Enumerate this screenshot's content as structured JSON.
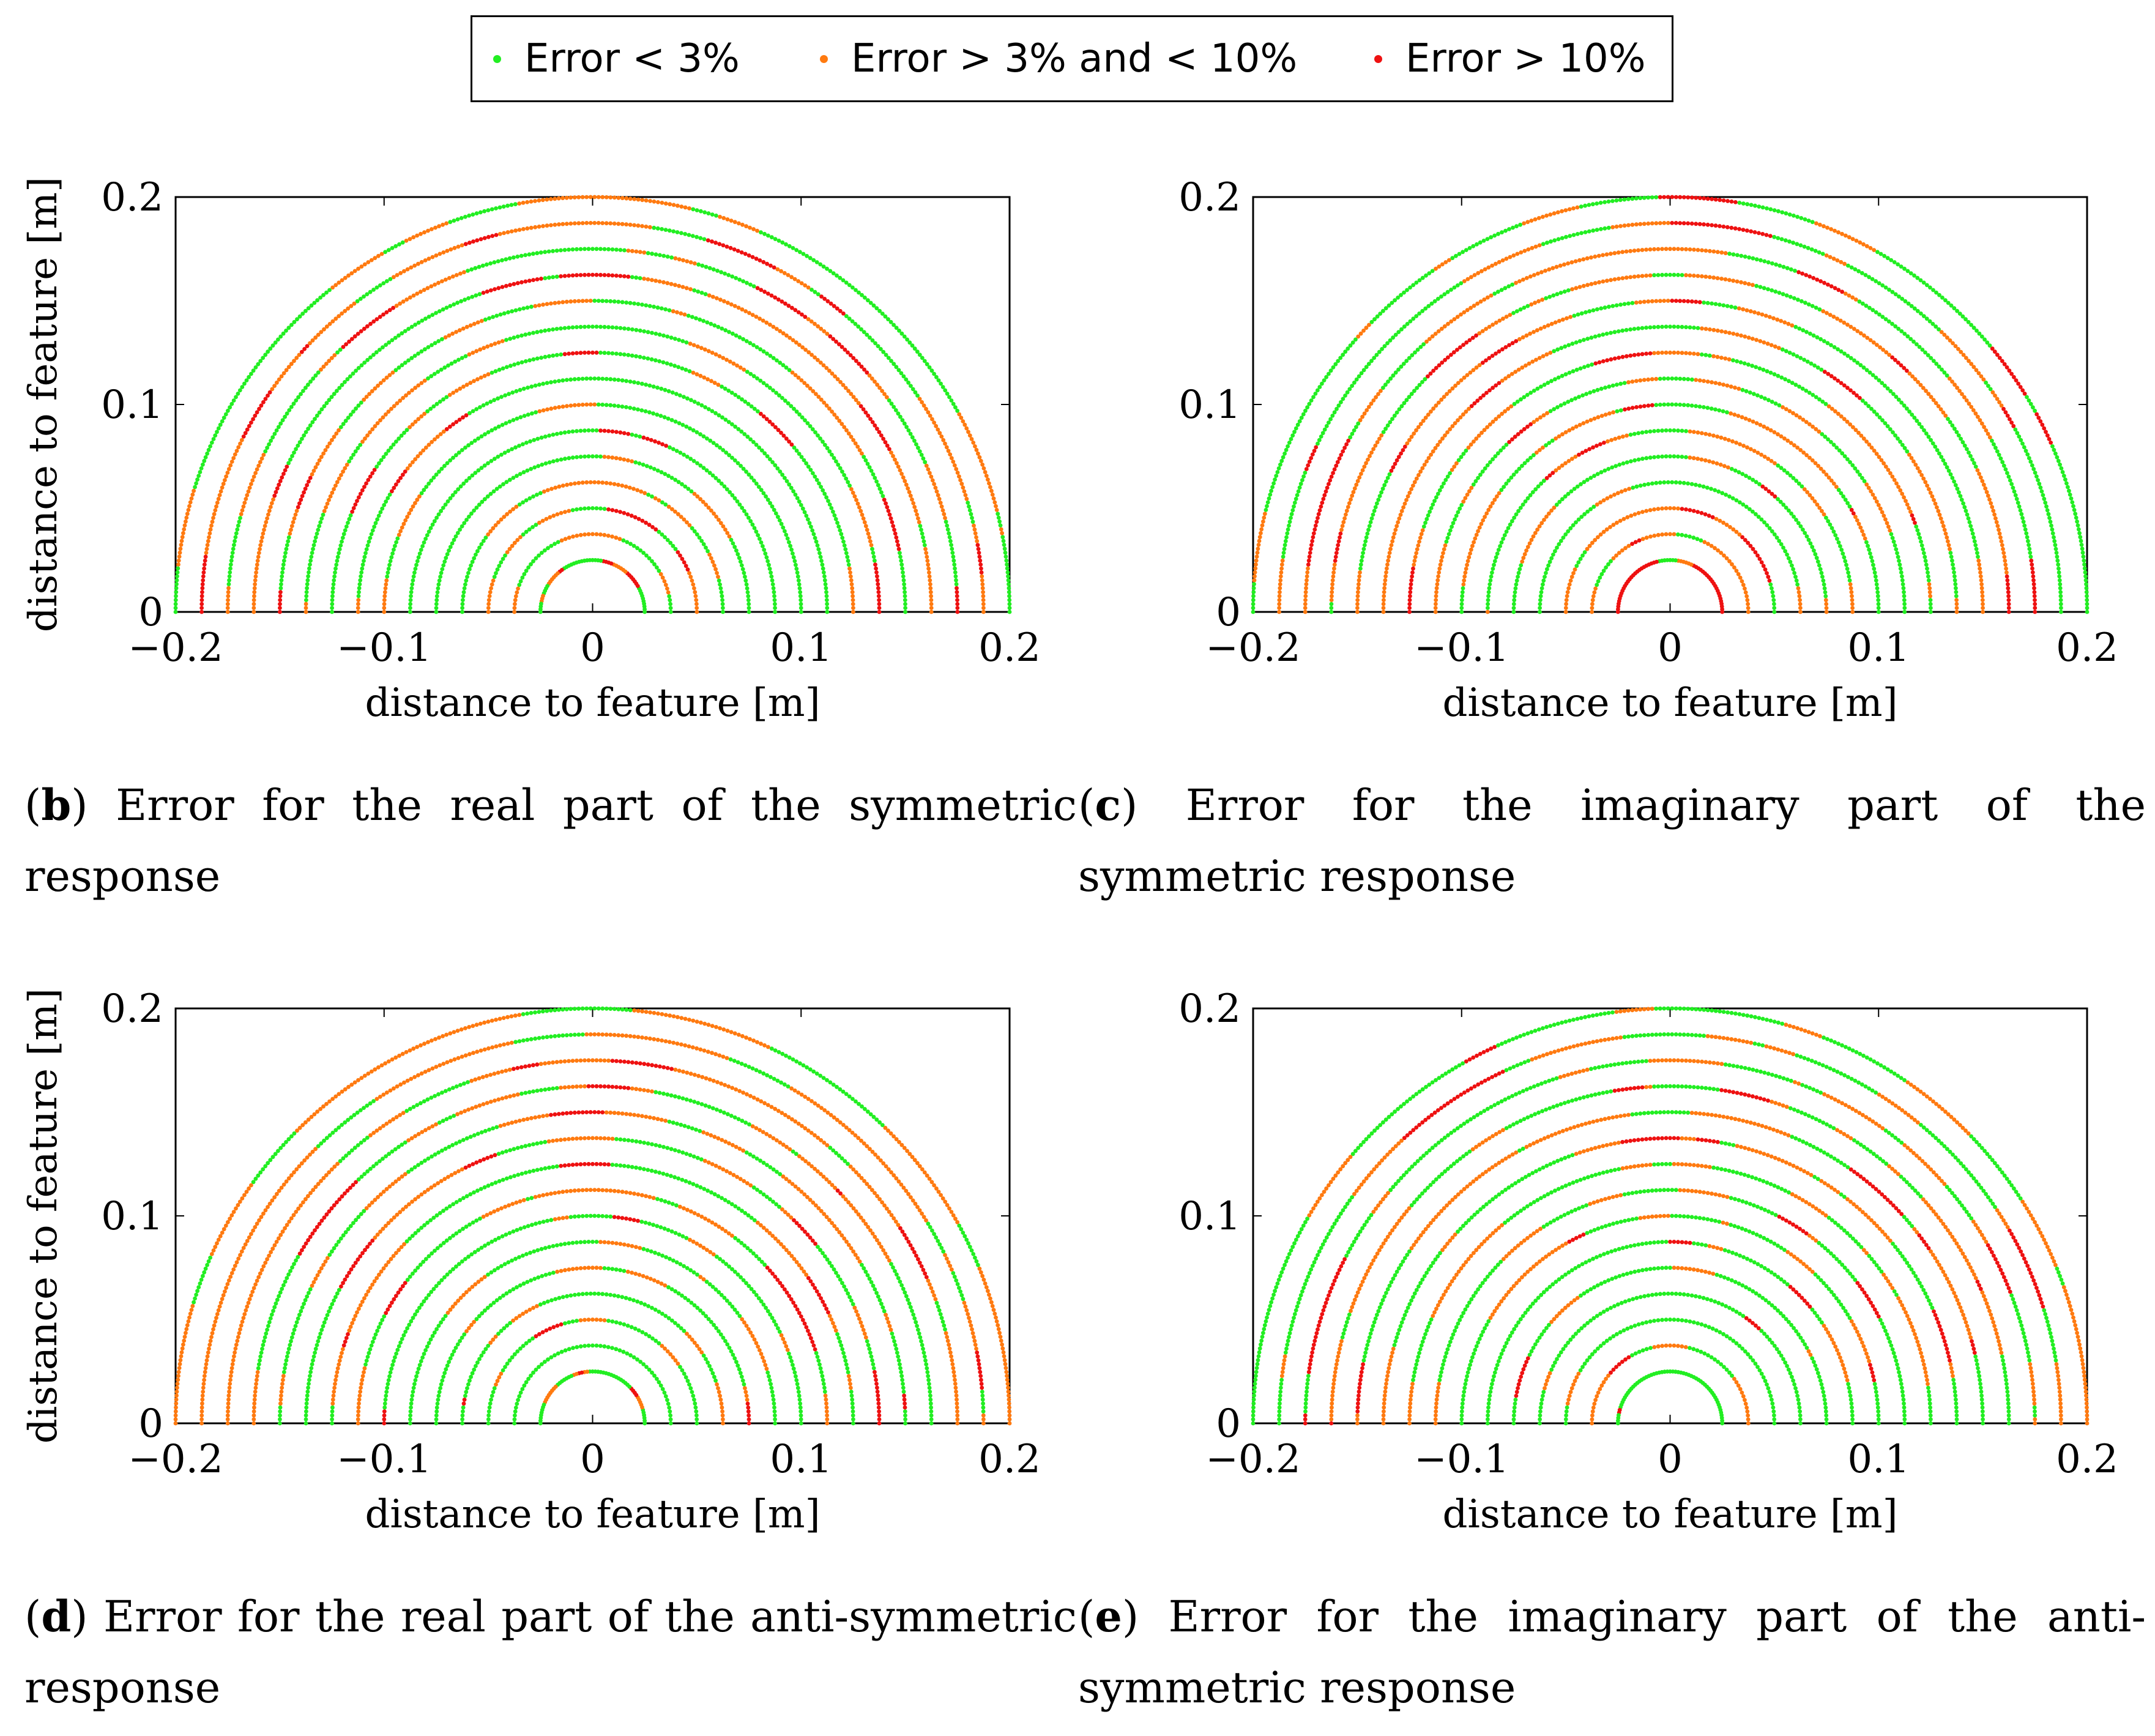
{
  "legend": {
    "entries": [
      {
        "label": "Error < 3%",
        "color": "#22ee22"
      },
      {
        "label": "Error > 3% and < 10%",
        "color": "#ff7a10"
      },
      {
        "label": "Error > 10%",
        "color": "#ee1111"
      }
    ]
  },
  "chart_data": [
    {
      "type": "scatter",
      "panel_letter": "b",
      "caption": "Error for the real part of the symmetric response",
      "xlabel": "distance to feature [m]",
      "ylabel": "distance to feature [m]",
      "xlim": [
        -0.2,
        0.2
      ],
      "ylim": [
        0,
        0.2
      ],
      "xticks": [
        -0.2,
        -0.1,
        0,
        0.1,
        0.2
      ],
      "xtick_labels": [
        "−0.2",
        "−0.1",
        "0",
        "0.1",
        "0.2"
      ],
      "yticks": [
        0,
        0.1,
        0.2
      ],
      "ytick_labels": [
        "0",
        "0.1",
        "0.2"
      ],
      "ring_radii": [
        0.025,
        0.0375,
        0.05,
        0.0625,
        0.075,
        0.0875,
        0.1,
        0.1125,
        0.125,
        0.1375,
        0.15,
        0.1625,
        0.175,
        0.1875,
        0.2
      ],
      "ring_errors": [
        {
          "radius": 0.025,
          "orange": 0.3,
          "red": 0.4
        },
        {
          "radius": 0.0375,
          "orange": 0.3,
          "red": 0.05
        },
        {
          "radius": 0.05,
          "orange": 0.5,
          "red": 0.05
        },
        {
          "radius": 0.0625,
          "orange": 0.6,
          "red": 0.05
        },
        {
          "radius": 0.075,
          "orange": 0.1,
          "red": 0.02
        },
        {
          "radius": 0.0875,
          "orange": 0.1,
          "red": 0.03
        },
        {
          "radius": 0.1,
          "orange": 0.1,
          "red": 0.03
        },
        {
          "radius": 0.1125,
          "orange": 0.2,
          "red": 0.05
        },
        {
          "radius": 0.125,
          "orange": 0.2,
          "red": 0.08
        },
        {
          "radius": 0.1375,
          "orange": 0.25,
          "red": 0.08
        },
        {
          "radius": 0.15,
          "orange": 0.3,
          "red": 0.1
        },
        {
          "radius": 0.1625,
          "orange": 0.4,
          "red": 0.15
        },
        {
          "radius": 0.175,
          "orange": 0.5,
          "red": 0.2
        },
        {
          "radius": 0.1875,
          "orange": 0.55,
          "red": 0.15
        },
        {
          "radius": 0.2,
          "orange": 0.35,
          "red": 0.05
        }
      ],
      "grid": false
    },
    {
      "type": "scatter",
      "panel_letter": "c",
      "caption": "Error for the imaginary part of the symmetric response",
      "xlabel": "distance to feature [m]",
      "ylabel": "",
      "xlim": [
        -0.2,
        0.2
      ],
      "ylim": [
        0,
        0.2
      ],
      "xticks": [
        -0.2,
        -0.1,
        0,
        0.1,
        0.2
      ],
      "xtick_labels": [
        "−0.2",
        "−0.1",
        "0",
        "0.1",
        "0.2"
      ],
      "yticks": [
        0,
        0.1,
        0.2
      ],
      "ytick_labels": [
        "0",
        "0.1",
        "0.2"
      ],
      "ring_radii": [
        0.025,
        0.0375,
        0.05,
        0.0625,
        0.075,
        0.0875,
        0.1,
        0.1125,
        0.125,
        0.1375,
        0.15,
        0.1625,
        0.175,
        0.1875,
        0.2
      ],
      "ring_errors": [
        {
          "radius": 0.025,
          "orange": 0.1,
          "red": 0.8
        },
        {
          "radius": 0.0375,
          "orange": 0.5,
          "red": 0.35
        },
        {
          "radius": 0.05,
          "orange": 0.6,
          "red": 0.15
        },
        {
          "radius": 0.0625,
          "orange": 0.15,
          "red": 0.05
        },
        {
          "radius": 0.075,
          "orange": 0.2,
          "red": 0.05
        },
        {
          "radius": 0.0875,
          "orange": 0.45,
          "red": 0.1
        },
        {
          "radius": 0.1,
          "orange": 0.4,
          "red": 0.1
        },
        {
          "radius": 0.1125,
          "orange": 0.45,
          "red": 0.15
        },
        {
          "radius": 0.125,
          "orange": 0.5,
          "red": 0.15
        },
        {
          "radius": 0.1375,
          "orange": 0.5,
          "red": 0.15
        },
        {
          "radius": 0.15,
          "orange": 0.4,
          "red": 0.15
        },
        {
          "radius": 0.1625,
          "orange": 0.4,
          "red": 0.15
        },
        {
          "radius": 0.175,
          "orange": 0.4,
          "red": 0.2
        },
        {
          "radius": 0.1875,
          "orange": 0.4,
          "red": 0.2
        },
        {
          "radius": 0.2,
          "orange": 0.15,
          "red": 0.05
        }
      ],
      "grid": false
    },
    {
      "type": "scatter",
      "panel_letter": "d",
      "caption": "Error for the real part of the anti-symmetric response",
      "xlabel": "distance to feature [m]",
      "ylabel": "distance to feature [m]",
      "xlim": [
        -0.2,
        0.2
      ],
      "ylim": [
        0,
        0.2
      ],
      "xticks": [
        -0.2,
        -0.1,
        0,
        0.1,
        0.2
      ],
      "xtick_labels": [
        "−0.2",
        "−0.1",
        "0",
        "0.1",
        "0.2"
      ],
      "yticks": [
        0,
        0.1,
        0.2
      ],
      "ytick_labels": [
        "0",
        "0.1",
        "0.2"
      ],
      "ring_radii": [
        0.025,
        0.0375,
        0.05,
        0.0625,
        0.075,
        0.0875,
        0.1,
        0.1125,
        0.125,
        0.1375,
        0.15,
        0.1625,
        0.175,
        0.1875,
        0.2
      ],
      "ring_errors": [
        {
          "radius": 0.025,
          "orange": 0.5,
          "red": 0.15
        },
        {
          "radius": 0.0375,
          "orange": 0.15,
          "red": 0.05
        },
        {
          "radius": 0.05,
          "orange": 0.15,
          "red": 0.05
        },
        {
          "radius": 0.0625,
          "orange": 0.2,
          "red": 0.05
        },
        {
          "radius": 0.075,
          "orange": 0.2,
          "red": 0.05
        },
        {
          "radius": 0.0875,
          "orange": 0.25,
          "red": 0.08
        },
        {
          "radius": 0.1,
          "orange": 0.3,
          "red": 0.1
        },
        {
          "radius": 0.1125,
          "orange": 0.35,
          "red": 0.1
        },
        {
          "radius": 0.125,
          "orange": 0.35,
          "red": 0.1
        },
        {
          "radius": 0.1375,
          "orange": 0.4,
          "red": 0.12
        },
        {
          "radius": 0.15,
          "orange": 0.45,
          "red": 0.12
        },
        {
          "radius": 0.1625,
          "orange": 0.5,
          "red": 0.12
        },
        {
          "radius": 0.175,
          "orange": 0.55,
          "red": 0.12
        },
        {
          "radius": 0.1875,
          "orange": 0.6,
          "red": 0.1
        },
        {
          "radius": 0.2,
          "orange": 0.55,
          "red": 0.05
        }
      ],
      "grid": false
    },
    {
      "type": "scatter",
      "panel_letter": "e",
      "caption": "Error for the imaginary part of the anti-symmetric response",
      "xlabel": "distance to feature [m]",
      "ylabel": "",
      "xlim": [
        -0.2,
        0.2
      ],
      "ylim": [
        0,
        0.2
      ],
      "xticks": [
        -0.2,
        -0.1,
        0,
        0.1,
        0.2
      ],
      "xtick_labels": [
        "−0.2",
        "−0.1",
        "0",
        "0.1",
        "0.2"
      ],
      "yticks": [
        0,
        0.1,
        0.2
      ],
      "ytick_labels": [
        "0",
        "0.1",
        "0.2"
      ],
      "ring_radii": [
        0.025,
        0.0375,
        0.05,
        0.0625,
        0.075,
        0.0875,
        0.1,
        0.1125,
        0.125,
        0.1375,
        0.15,
        0.1625,
        0.175,
        0.1875,
        0.2
      ],
      "ring_errors": [
        {
          "radius": 0.025,
          "orange": 0.15,
          "red": 0.05
        },
        {
          "radius": 0.0375,
          "orange": 0.6,
          "red": 0.1
        },
        {
          "radius": 0.05,
          "orange": 0.2,
          "red": 0.05
        },
        {
          "radius": 0.0625,
          "orange": 0.2,
          "red": 0.05
        },
        {
          "radius": 0.075,
          "orange": 0.3,
          "red": 0.08
        },
        {
          "radius": 0.0875,
          "orange": 0.3,
          "red": 0.08
        },
        {
          "radius": 0.1,
          "orange": 0.35,
          "red": 0.1
        },
        {
          "radius": 0.1125,
          "orange": 0.4,
          "red": 0.12
        },
        {
          "radius": 0.125,
          "orange": 0.4,
          "red": 0.12
        },
        {
          "radius": 0.1375,
          "orange": 0.45,
          "red": 0.12
        },
        {
          "radius": 0.15,
          "orange": 0.45,
          "red": 0.15
        },
        {
          "radius": 0.1625,
          "orange": 0.45,
          "red": 0.15
        },
        {
          "radius": 0.175,
          "orange": 0.45,
          "red": 0.15
        },
        {
          "radius": 0.1875,
          "orange": 0.4,
          "red": 0.15
        },
        {
          "radius": 0.2,
          "orange": 0.3,
          "red": 0.05
        }
      ],
      "grid": false
    }
  ]
}
